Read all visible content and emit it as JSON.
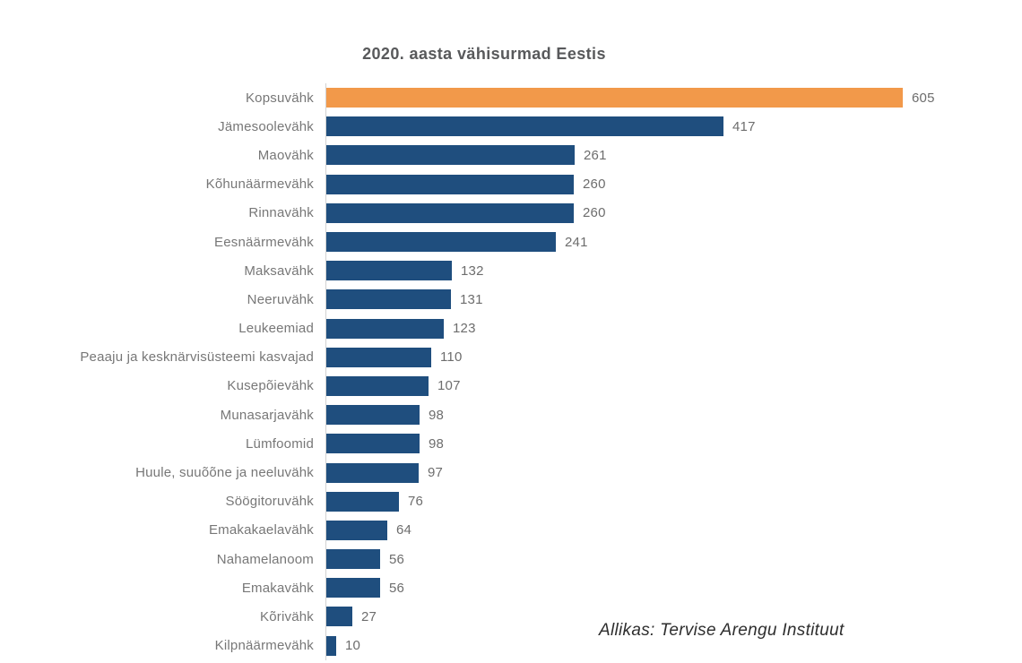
{
  "title": "2020. aasta vähisurmad Eestis",
  "source": "Allikas: Tervise Arengu Instituut",
  "colors": {
    "highlight_bar": "#F2994A",
    "bar": "#1F4E7E",
    "title_text": "#58595B",
    "category_text": "#777777",
    "value_text": "#6D6D6D",
    "axis_line": "#D2D2D2",
    "source_text": "#2E2E2E"
  },
  "chart_data": {
    "type": "bar",
    "orientation": "horizontal",
    "title": "2020. aasta vähisurmad Eestis",
    "categories": [
      "Kopsuvähk",
      "Jämesoolevähk",
      "Maovähk",
      "Kõhunäärmevähk",
      "Rinnavähk",
      "Eesnäärmevähk",
      "Maksavähk",
      "Neeruvähk",
      "Leukeemiad",
      "Peaaju ja kesknärvisüsteemi kasvajad",
      "Kusepõievähk",
      "Munasarjavähk",
      "Lümfoomid",
      "Huule, suuõõne ja neeluvähk",
      "Söögitoruvähk",
      "Emakakaelavähk",
      "Nahamelanoom",
      "Emakavähk",
      "Kõrivähk",
      "Kilpnäärmevähk"
    ],
    "values": [
      605,
      417,
      261,
      260,
      260,
      241,
      132,
      131,
      123,
      110,
      107,
      98,
      98,
      97,
      76,
      64,
      56,
      56,
      27,
      10
    ],
    "highlight_index": 0,
    "max_value": 605,
    "value_labels": true,
    "grid": false,
    "legend": false,
    "xlabel": "",
    "ylabel": "",
    "annotation": "Allikas: Tervise Arengu Instituut"
  }
}
